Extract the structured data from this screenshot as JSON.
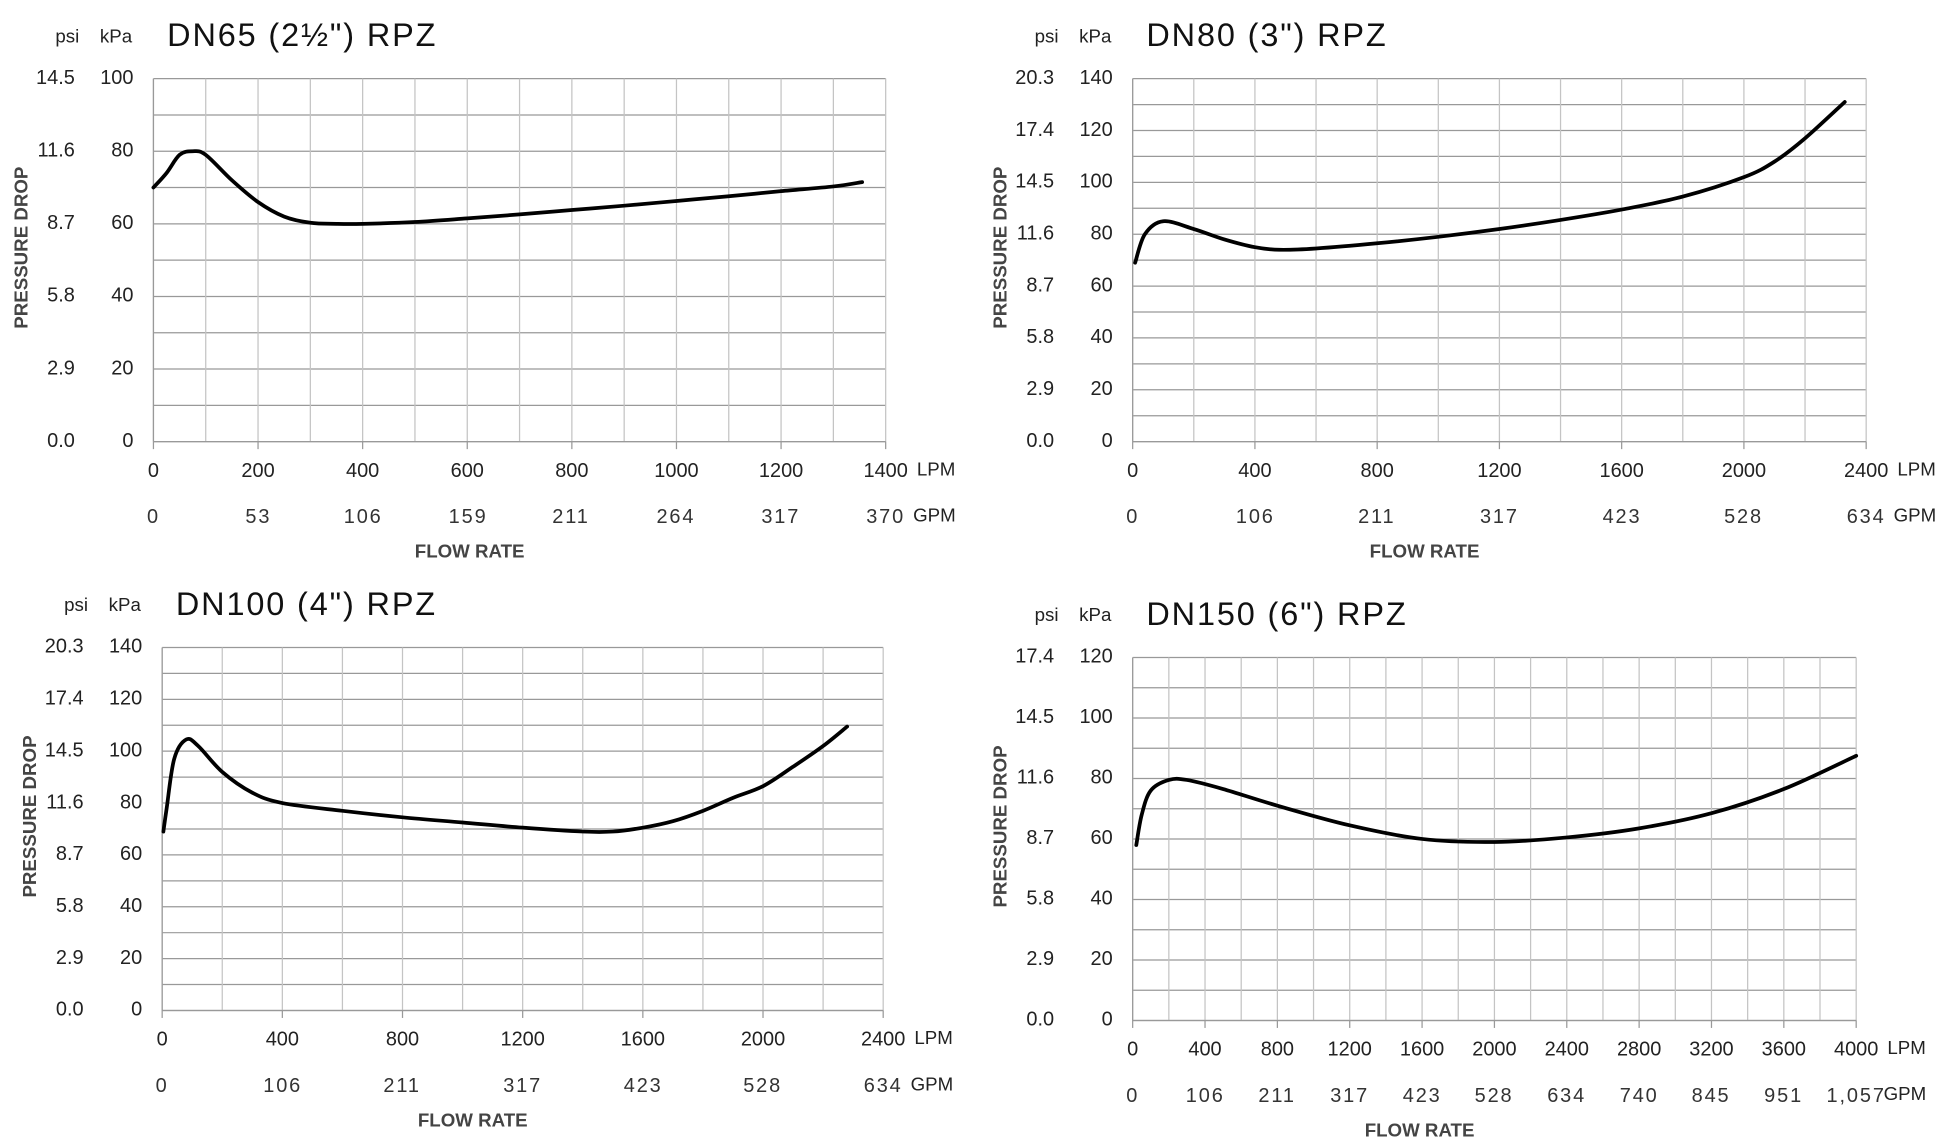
{
  "chart_data": [
    {
      "type": "line",
      "title": "DN65 (2½\") RPZ",
      "ylabel": "PRESSURE DROP",
      "xlabel": "FLOW RATE",
      "y_unit": "kPa",
      "y2_unit": "psi",
      "x_unit": "LPM",
      "x2_unit": "GPM",
      "color": "#000000",
      "grid": true,
      "minor_grid": true,
      "xlim": [
        0,
        1400
      ],
      "xticks": [
        0,
        200,
        400,
        600,
        800,
        1000,
        1200,
        1400
      ],
      "x2lim": [
        0,
        370
      ],
      "x2ticks": [
        0,
        53,
        106,
        159,
        211,
        264,
        317,
        370
      ],
      "ylim": [
        0,
        100
      ],
      "yticks": [
        0,
        20,
        40,
        60,
        80,
        100
      ],
      "y2lim": [
        0,
        14.5
      ],
      "y2ticks": [
        {
          "value": 0,
          "label": "0.0"
        },
        2.9,
        5.8,
        8.7,
        11.6,
        14.5
      ],
      "x": [
        0,
        25,
        50,
        75,
        100,
        150,
        200,
        250,
        300,
        350,
        400,
        500,
        600,
        700,
        800,
        900,
        1000,
        1100,
        1200,
        1300,
        1355
      ],
      "values": [
        70,
        74,
        79,
        80,
        79,
        72,
        66,
        62,
        60.3,
        60,
        60,
        60.5,
        61.5,
        62.6,
        63.8,
        65,
        66.3,
        67.6,
        69,
        70.3,
        71.5
      ]
    },
    {
      "type": "line",
      "title": "DN80 (3\") RPZ",
      "ylabel": "PRESSURE DROP",
      "xlabel": "FLOW RATE",
      "y_unit": "kPa",
      "y2_unit": "psi",
      "x_unit": "LPM",
      "x2_unit": "GPM",
      "color": "#000000",
      "grid": true,
      "minor_grid": true,
      "xlim": [
        0,
        2400
      ],
      "xticks": [
        0,
        400,
        800,
        1200,
        1600,
        2000,
        2400
      ],
      "x2lim": [
        0,
        634
      ],
      "x2ticks": [
        0,
        106,
        211,
        317,
        423,
        528,
        634
      ],
      "ylim": [
        0,
        140
      ],
      "yticks": [
        0,
        20,
        40,
        60,
        80,
        100,
        120,
        140
      ],
      "y2lim": [
        0,
        20.3
      ],
      "y2ticks": [
        {
          "value": 0,
          "label": "0.0"
        },
        2.9,
        5.8,
        8.7,
        11.6,
        14.5,
        17.4,
        20.3
      ],
      "x": [
        8,
        40,
        100,
        200,
        300,
        400,
        480,
        600,
        800,
        1000,
        1200,
        1400,
        1600,
        1800,
        2000,
        2100,
        2200,
        2330
      ],
      "values": [
        69,
        80,
        85,
        82,
        78,
        75,
        74,
        74.5,
        76.5,
        79,
        82,
        85.5,
        89.5,
        94.5,
        102,
        108,
        117,
        131
      ]
    },
    {
      "type": "line",
      "title": "DN100 (4\") RPZ",
      "ylabel": "PRESSURE DROP",
      "xlabel": "FLOW RATE",
      "y_unit": "kPa",
      "y2_unit": "psi",
      "x_unit": "LPM",
      "x2_unit": "GPM",
      "color": "#000000",
      "grid": true,
      "minor_grid": true,
      "xlim": [
        0,
        2400
      ],
      "xticks": [
        0,
        400,
        800,
        1200,
        1600,
        2000,
        2400
      ],
      "x2lim": [
        0,
        634
      ],
      "x2ticks": [
        0,
        106,
        211,
        317,
        423,
        528,
        634
      ],
      "ylim": [
        0,
        140
      ],
      "yticks": [
        0,
        20,
        40,
        60,
        80,
        100,
        120,
        140
      ],
      "y2lim": [
        0,
        20.3
      ],
      "y2ticks": [
        {
          "value": 0,
          "label": "0.0"
        },
        2.9,
        5.8,
        8.7,
        11.6,
        14.5,
        17.4,
        20.3
      ],
      "x": [
        4,
        15,
        40,
        80,
        120,
        200,
        300,
        400,
        600,
        800,
        1000,
        1200,
        1400,
        1500,
        1600,
        1700,
        1800,
        1900,
        2000,
        2100,
        2200,
        2280
      ],
      "values": [
        69,
        78,
        97,
        104.5,
        102,
        92,
        84,
        80,
        77,
        74.5,
        72.5,
        70.5,
        69,
        69,
        70.5,
        73,
        77,
        82,
        86.5,
        94,
        102,
        109.5
      ]
    },
    {
      "type": "line",
      "title": "DN150 (6\") RPZ",
      "ylabel": "PRESSURE DROP",
      "xlabel": "FLOW RATE",
      "y_unit": "kPa",
      "y2_unit": "psi",
      "x_unit": "LPM",
      "x2_unit": "GPM",
      "color": "#000000",
      "grid": true,
      "minor_grid": true,
      "xlim": [
        0,
        4000
      ],
      "xticks": [
        0,
        400,
        800,
        1200,
        1600,
        2000,
        2400,
        2800,
        3200,
        3600,
        4000
      ],
      "x2lim": [
        0,
        1057
      ],
      "x2ticks": [
        0,
        106,
        211,
        317,
        423,
        528,
        634,
        740,
        845,
        951,
        {
          "value": 1057,
          "label": "1,057"
        }
      ],
      "ylim": [
        0,
        120
      ],
      "yticks": [
        0,
        20,
        40,
        60,
        80,
        100,
        120
      ],
      "y2lim": [
        0,
        17.4
      ],
      "y2ticks": [
        {
          "value": 0,
          "label": "0.0"
        },
        2.9,
        5.8,
        8.7,
        11.6,
        14.5,
        17.4
      ],
      "x": [
        20,
        50,
        100,
        200,
        300,
        500,
        800,
        1200,
        1600,
        2000,
        2400,
        2800,
        3200,
        3600,
        4000
      ],
      "values": [
        58,
        68,
        76,
        79.5,
        79.5,
        76.5,
        71,
        64.5,
        60,
        59,
        60.5,
        63.5,
        68.5,
        76.5,
        87.5
      ]
    }
  ]
}
